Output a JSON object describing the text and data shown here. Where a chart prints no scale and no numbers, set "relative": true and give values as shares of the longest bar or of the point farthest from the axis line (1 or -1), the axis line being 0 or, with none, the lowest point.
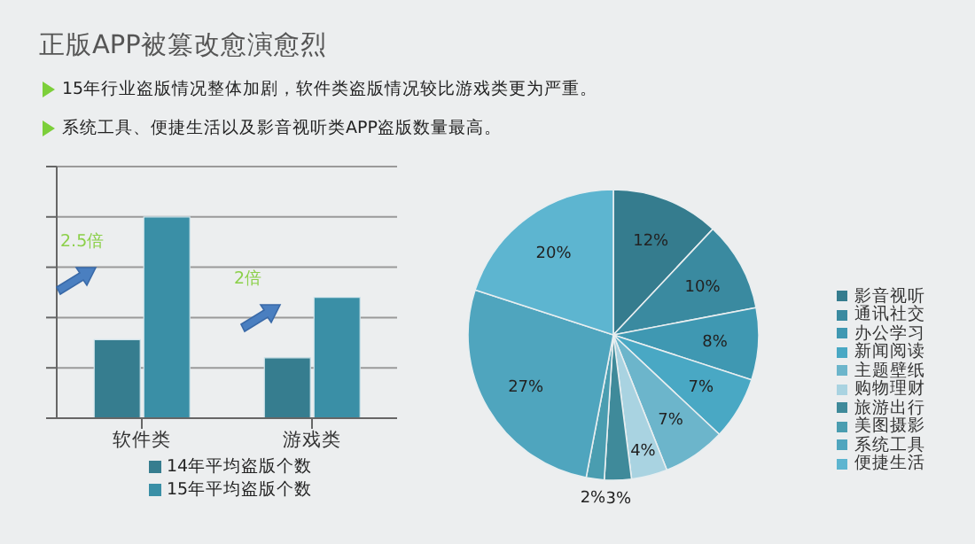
{
  "chart_data": [
    {
      "type": "bar",
      "title": "正版APP被篡改愈演愈烈",
      "categories": [
        "软件类",
        "游戏类"
      ],
      "relative": true,
      "grid": "y",
      "legend": "bottom",
      "series": [
        {
          "name": "14年平均盗版个数",
          "color": "#367d8f",
          "values": [
            0.39,
            0.3
          ]
        },
        {
          "name": "15年平均盗版个数",
          "color": "#3a8fa6",
          "values": [
            1,
            0.6
          ]
        }
      ],
      "annotations": [
        "15年行业盗版情况整体加剧，软件类盗版情况较比游戏类更为严重。",
        "系统工具、便捷生活以及影音视听类APP盗版数量最高。",
        "2.5倍",
        "2倍"
      ]
    },
    {
      "type": "pie",
      "categories": [
        "影音视听",
        "通讯社交",
        "办公学习",
        "新闻阅读",
        "主题壁纸",
        "购物理财",
        "旅游出行",
        "美图摄影",
        "系统工具",
        "便捷生活"
      ],
      "values": [
        12,
        10,
        8,
        7,
        7,
        4,
        3,
        2,
        27,
        20
      ],
      "value_labels": [
        "12%",
        "10%",
        "8%",
        "7%",
        "7%",
        "4%",
        "3%",
        "2%",
        "27%",
        "20%"
      ],
      "colors": [
        "#357c8e",
        "#3a8aa0",
        "#3f98b2",
        "#49a8c4",
        "#6cb5cb",
        "#a9d3e1",
        "#3f8a9a",
        "#4a9db0",
        "#4fa5be",
        "#5db5d0"
      ],
      "legend": "right"
    }
  ]
}
